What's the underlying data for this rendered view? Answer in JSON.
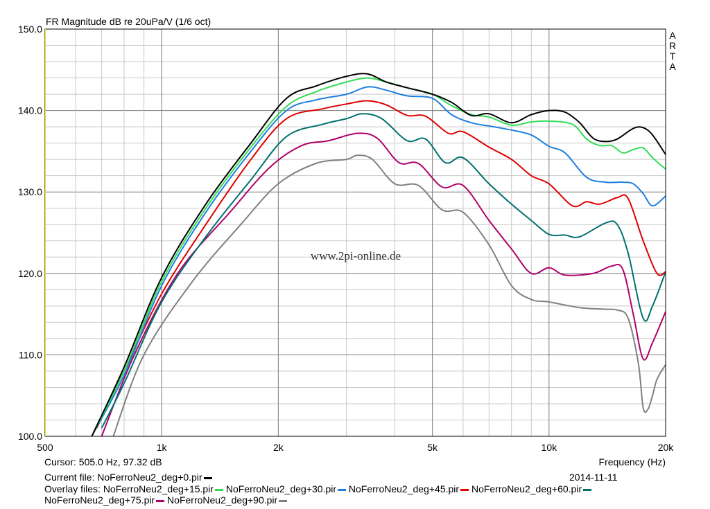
{
  "chart_data": {
    "type": "line",
    "title": "FR Magnitude dB re 20uPa/V (1/6 oct)",
    "brand": "ARTA",
    "watermark": "www.2pi-online.de",
    "xlabel": "Frequency (Hz)",
    "xscale": "log",
    "xlim": [
      500,
      20000
    ],
    "ylim": [
      100,
      150
    ],
    "grid": true,
    "x_tick_labels": [
      {
        "value": 500,
        "label": "500"
      },
      {
        "value": 1000,
        "label": "1k"
      },
      {
        "value": 2000,
        "label": "2k"
      },
      {
        "value": 5000,
        "label": "5k"
      },
      {
        "value": 10000,
        "label": "10k"
      },
      {
        "value": 20000,
        "label": "20k"
      }
    ],
    "y_tick_labels": [
      {
        "value": 100,
        "label": "100.0"
      },
      {
        "value": 110,
        "label": "110.0"
      },
      {
        "value": 120,
        "label": "120.0"
      },
      {
        "value": 130,
        "label": "130.0"
      },
      {
        "value": 140,
        "label": "140.0"
      },
      {
        "value": 150,
        "label": "150.0"
      }
    ],
    "series": [
      {
        "name": "NoFerroNeu2_deg+90.pir",
        "color": "#808080",
        "points": [
          [
            750,
            100
          ],
          [
            900,
            110
          ],
          [
            1200,
            119
          ],
          [
            1600,
            126
          ],
          [
            2000,
            131
          ],
          [
            2500,
            133.5
          ],
          [
            3000,
            134
          ],
          [
            3200,
            134.5
          ],
          [
            3500,
            134
          ],
          [
            4000,
            131
          ],
          [
            4600,
            130.8
          ],
          [
            5300,
            127.8
          ],
          [
            6000,
            127.5
          ],
          [
            7000,
            123.5
          ],
          [
            8000,
            118.5
          ],
          [
            9000,
            116.8
          ],
          [
            10000,
            116.5
          ],
          [
            12000,
            115.8
          ],
          [
            14000,
            115.6
          ],
          [
            15000,
            115.5
          ],
          [
            16000,
            114.5
          ],
          [
            17000,
            109
          ],
          [
            17500,
            103.5
          ],
          [
            18000,
            103.3
          ],
          [
            18500,
            105
          ],
          [
            19000,
            107
          ],
          [
            20000,
            108.8
          ]
        ]
      },
      {
        "name": "NoFerroNeu2_deg+75.pir",
        "color": "#b0006a",
        "points": [
          [
            700,
            100
          ],
          [
            850,
            110
          ],
          [
            1100,
            120
          ],
          [
            1500,
            127.5
          ],
          [
            1900,
            133
          ],
          [
            2300,
            135.7
          ],
          [
            2700,
            136.3
          ],
          [
            3200,
            137.2
          ],
          [
            3600,
            136.6
          ],
          [
            4100,
            133.6
          ],
          [
            4600,
            133.5
          ],
          [
            5300,
            130.6
          ],
          [
            6000,
            130.8
          ],
          [
            7000,
            126.5
          ],
          [
            8000,
            123
          ],
          [
            9000,
            120
          ],
          [
            10000,
            120.7
          ],
          [
            11000,
            119.8
          ],
          [
            13000,
            120
          ],
          [
            14500,
            120.9
          ],
          [
            15500,
            120.5
          ],
          [
            16500,
            115
          ],
          [
            17500,
            109.5
          ],
          [
            18500,
            111.5
          ],
          [
            20000,
            115.3
          ]
        ]
      },
      {
        "name": "NoFerroNeu2_deg+60.pir",
        "color": "#007070",
        "points": [
          [
            700,
            101
          ],
          [
            800,
            106.5
          ],
          [
            1000,
            116.5
          ],
          [
            1300,
            124.5
          ],
          [
            1700,
            131.5
          ],
          [
            2100,
            136.8
          ],
          [
            2600,
            138.3
          ],
          [
            3000,
            139
          ],
          [
            3300,
            139.6
          ],
          [
            3700,
            139
          ],
          [
            4300,
            136.3
          ],
          [
            4800,
            136.5
          ],
          [
            5400,
            133.6
          ],
          [
            6000,
            134.2
          ],
          [
            7000,
            131
          ],
          [
            8000,
            128.5
          ],
          [
            9000,
            126.5
          ],
          [
            10000,
            124.8
          ],
          [
            11000,
            124.7
          ],
          [
            12000,
            124.5
          ],
          [
            14000,
            126.2
          ],
          [
            15000,
            126
          ],
          [
            16000,
            122.5
          ],
          [
            17500,
            114.5
          ],
          [
            18500,
            116
          ],
          [
            20000,
            120.2
          ]
        ]
      },
      {
        "name": "NoFerroNeu2_deg+45.pir",
        "color": "#dd0000",
        "points": [
          [
            680,
            101
          ],
          [
            800,
            108
          ],
          [
            1000,
            117.5
          ],
          [
            1300,
            126
          ],
          [
            1700,
            134
          ],
          [
            2100,
            139
          ],
          [
            2600,
            140.2
          ],
          [
            3000,
            140.8
          ],
          [
            3400,
            141.2
          ],
          [
            3800,
            140.7
          ],
          [
            4300,
            139.4
          ],
          [
            4800,
            139.3
          ],
          [
            5500,
            137.2
          ],
          [
            6000,
            137.4
          ],
          [
            7000,
            135.5
          ],
          [
            8000,
            134
          ],
          [
            9000,
            132
          ],
          [
            10000,
            131
          ],
          [
            11500,
            128.3
          ],
          [
            12500,
            128.8
          ],
          [
            13500,
            128.5
          ],
          [
            15000,
            129.3
          ],
          [
            16000,
            129.2
          ],
          [
            17500,
            124
          ],
          [
            19000,
            120
          ],
          [
            20000,
            120.2
          ]
        ]
      },
      {
        "name": "NoFerroNeu2_deg+30.pir",
        "color": "#1e7fe0",
        "points": [
          [
            660,
            100
          ],
          [
            800,
            107.5
          ],
          [
            1000,
            118.5
          ],
          [
            1300,
            127.5
          ],
          [
            1700,
            135
          ],
          [
            2100,
            140
          ],
          [
            2500,
            141.3
          ],
          [
            3000,
            142
          ],
          [
            3400,
            142.9
          ],
          [
            3800,
            142.5
          ],
          [
            4300,
            141.8
          ],
          [
            5000,
            141.5
          ],
          [
            5600,
            139.5
          ],
          [
            6300,
            138.5
          ],
          [
            7000,
            138.1
          ],
          [
            8000,
            137.6
          ],
          [
            9000,
            137
          ],
          [
            10000,
            135.6
          ],
          [
            11000,
            134.8
          ],
          [
            12500,
            131.8
          ],
          [
            14000,
            131.2
          ],
          [
            15500,
            131.2
          ],
          [
            16500,
            131
          ],
          [
            17500,
            129.8
          ],
          [
            18500,
            128.3
          ],
          [
            20000,
            129.5
          ]
        ]
      },
      {
        "name": "NoFerroNeu2_deg+15.pir",
        "color": "#33dd55",
        "points": [
          [
            660,
            100
          ],
          [
            800,
            108
          ],
          [
            1000,
            119
          ],
          [
            1300,
            128
          ],
          [
            1700,
            135.5
          ],
          [
            2100,
            140.5
          ],
          [
            2500,
            142.3
          ],
          [
            3000,
            143.5
          ],
          [
            3400,
            144
          ],
          [
            3800,
            143.5
          ],
          [
            4300,
            142.8
          ],
          [
            5000,
            142
          ],
          [
            5600,
            140.6
          ],
          [
            6300,
            139.5
          ],
          [
            7000,
            139.2
          ],
          [
            8000,
            138.2
          ],
          [
            9000,
            138.6
          ],
          [
            10000,
            138.7
          ],
          [
            11500,
            138.3
          ],
          [
            12500,
            136.5
          ],
          [
            13500,
            135.7
          ],
          [
            14500,
            135.7
          ],
          [
            15500,
            134.8
          ],
          [
            16500,
            135.2
          ],
          [
            17500,
            135.4
          ],
          [
            18500,
            134.2
          ],
          [
            20000,
            132.8
          ]
        ]
      },
      {
        "name": "NoFerroNeu2_deg+0.pir",
        "color": "#000000",
        "points": [
          [
            660,
            100
          ],
          [
            800,
            108.5
          ],
          [
            1000,
            119.5
          ],
          [
            1300,
            128.5
          ],
          [
            1700,
            136
          ],
          [
            2100,
            141.5
          ],
          [
            2500,
            143
          ],
          [
            3000,
            144.2
          ],
          [
            3400,
            144.5
          ],
          [
            3800,
            143.5
          ],
          [
            4300,
            142.8
          ],
          [
            5000,
            142
          ],
          [
            5600,
            141
          ],
          [
            6300,
            139.4
          ],
          [
            7000,
            139.6
          ],
          [
            8000,
            138.5
          ],
          [
            9000,
            139.5
          ],
          [
            10000,
            140
          ],
          [
            11000,
            139.8
          ],
          [
            12000,
            138.5
          ],
          [
            13000,
            136.6
          ],
          [
            14000,
            136.2
          ],
          [
            15000,
            136.5
          ],
          [
            16500,
            137.8
          ],
          [
            17500,
            137.9
          ],
          [
            18500,
            137
          ],
          [
            20000,
            134.6
          ]
        ]
      }
    ]
  },
  "status": {
    "cursor": "Cursor: 505.0 Hz, 97.32 dB",
    "current_file_label": "Current file: NoFerroNeu2_deg+0.pir",
    "date": "2014-11-11",
    "overlay_label": "Overlay files:"
  }
}
